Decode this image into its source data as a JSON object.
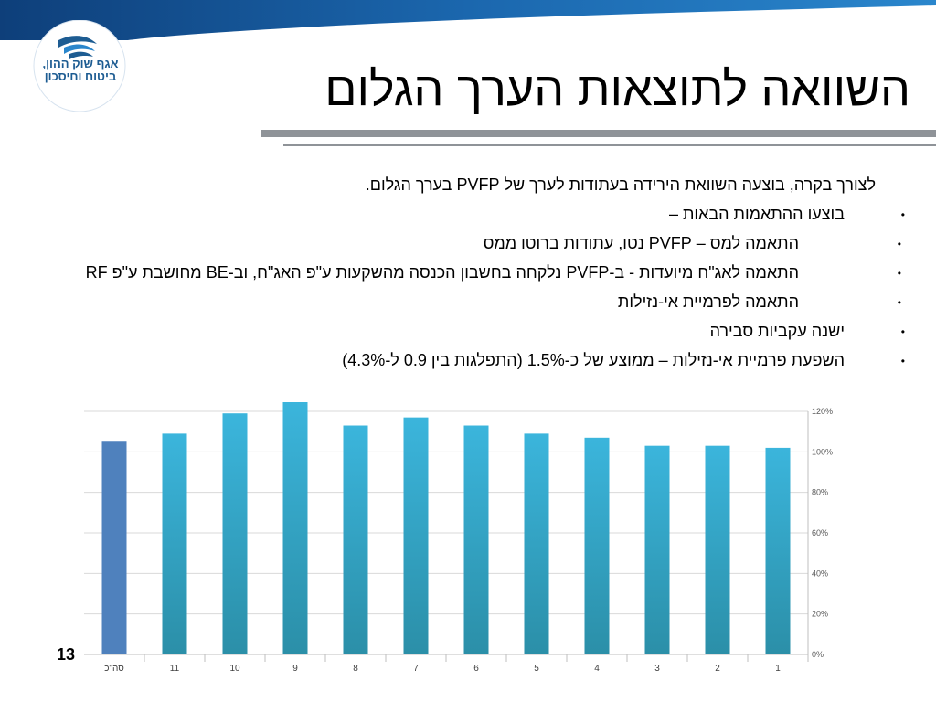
{
  "slide": {
    "title": "השוואה לתוצאות הערך הגלום",
    "number": "13",
    "logo_line1": "אגף שוק ההון,",
    "logo_line2": "ביטוח וחיסכון",
    "intro": "לצורך בקרה, בוצעה השוואת הירידה בעתודות לערך של PVFP בערך הגלום.",
    "bullets": [
      {
        "text": "בוצעו ההתאמות הבאות –",
        "children": [
          "התאמה למס – PVFP נטו, עתודות ברוטו ממס",
          "התאמה לאג\"ח מיועדות  - ב-PVFP נלקחה בחשבון הכנסה מהשקעות ע\"פ האג\"ח, וב-BE מחושבת ע\"פ RF",
          "התאמה לפרמיית אי-נזילות"
        ]
      },
      {
        "text": "ישנה עקביות סבירה",
        "children": []
      },
      {
        "text": "השפעת פרמיית אי-נזילות – ממוצע של כ-1.5% (התפלגות בין 0.9 ל-4.3%)",
        "children": []
      }
    ],
    "bullet_glyph": "•",
    "colors": {
      "title_rule": "#8f9398",
      "logo_blue": "#1d5c92",
      "band_blue": "#1f6fb5"
    }
  },
  "chart_data": {
    "type": "bar",
    "categories": [
      "סה\"כ",
      "11",
      "10",
      "9",
      "8",
      "7",
      "6",
      "5",
      "4",
      "3",
      "2",
      "1"
    ],
    "values": [
      105,
      109,
      119,
      125,
      113,
      117,
      113,
      109,
      107,
      103,
      103,
      102
    ],
    "yticks": [
      "0%",
      "20%",
      "40%",
      "60%",
      "80%",
      "100%",
      "120%"
    ],
    "ylim": [
      0,
      120
    ],
    "y_axis_side": "right",
    "grid": true,
    "colors": {
      "total": "#4f81bd",
      "bar_top": "#3bb5dc",
      "bar_bottom": "#2b8fa8"
    }
  }
}
